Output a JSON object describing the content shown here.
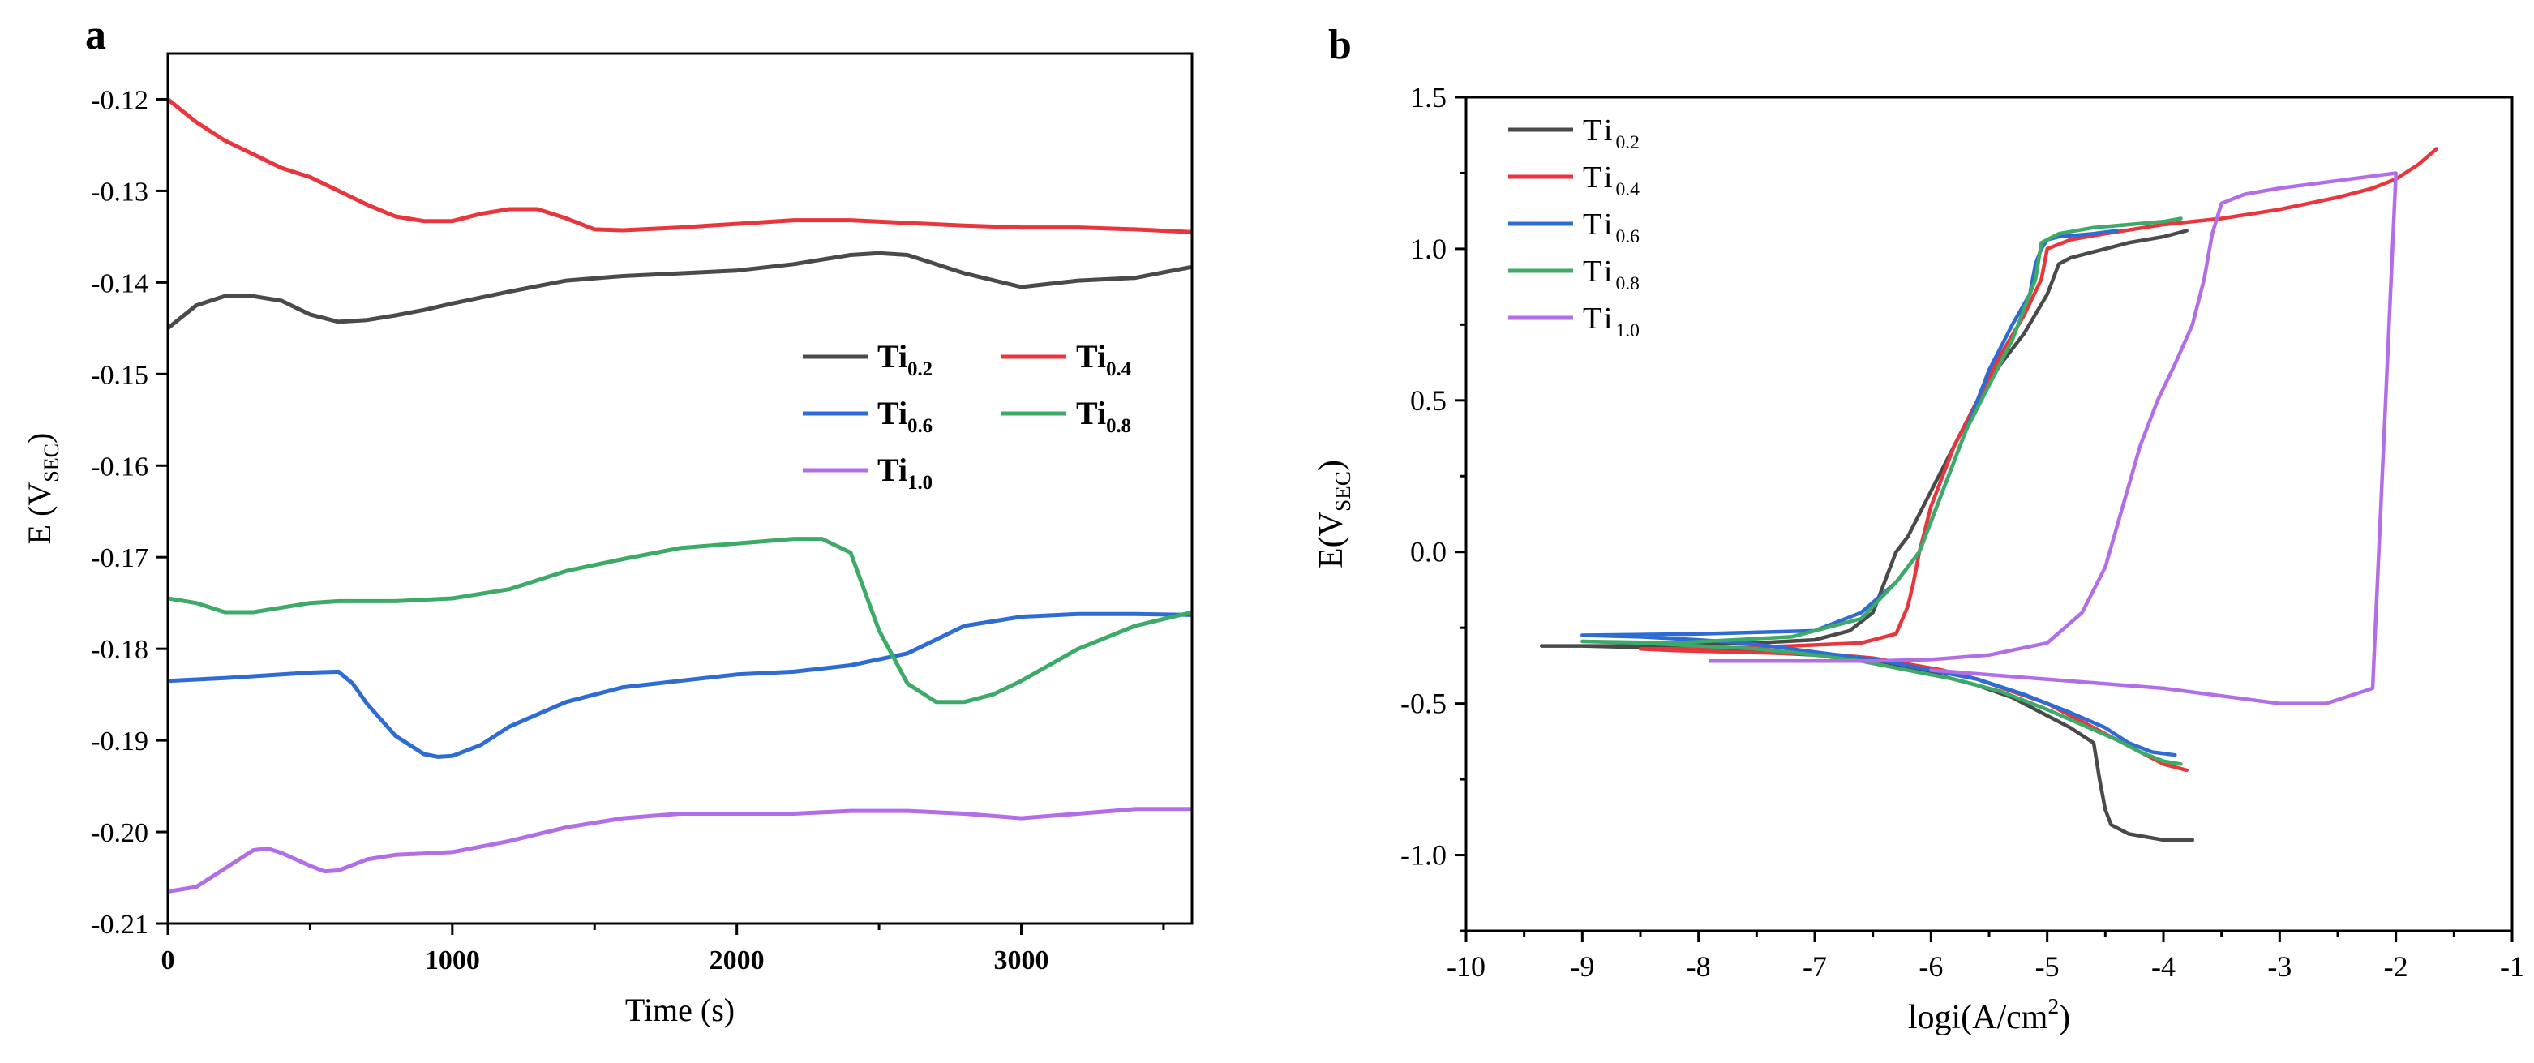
{
  "chart_data": [
    {
      "panel_label": "a",
      "type": "line",
      "xlabel": "Time (s)",
      "ylabel": "E (V",
      "ylabel_sub": "SEC",
      "ylabel_end": ")",
      "xlim": [
        0,
        3600
      ],
      "ylim": [
        -0.21,
        -0.115
      ],
      "xticks": [
        0,
        1000,
        2000,
        3000
      ],
      "xtick_labels": [
        "0",
        "1000",
        "2000",
        "3000"
      ],
      "yticks": [
        -0.21,
        -0.2,
        -0.19,
        -0.18,
        -0.17,
        -0.16,
        -0.15,
        -0.14,
        -0.13,
        -0.12
      ],
      "ytick_labels": [
        "-0.21",
        "-0.20",
        "-0.19",
        "-0.18",
        "-0.17",
        "-0.16",
        "-0.15",
        "-0.14",
        "-0.13",
        "-0.12"
      ],
      "legend_position": "middle-right",
      "grid": false,
      "series": [
        {
          "name_base": "Ti",
          "name_sub": "0.2",
          "color": "#4a4a4a",
          "x": [
            0,
            100,
            200,
            300,
            400,
            500,
            600,
            700,
            800,
            900,
            1000,
            1200,
            1400,
            1600,
            1800,
            2000,
            2200,
            2400,
            2500,
            2600,
            2800,
            3000,
            3200,
            3400,
            3600
          ],
          "y": [
            -0.145,
            -0.1425,
            -0.1415,
            -0.1415,
            -0.142,
            -0.1435,
            -0.1443,
            -0.1441,
            -0.1436,
            -0.143,
            -0.1423,
            -0.141,
            -0.1398,
            -0.1393,
            -0.139,
            -0.1387,
            -0.138,
            -0.137,
            -0.1368,
            -0.137,
            -0.139,
            -0.1405,
            -0.1398,
            -0.1395,
            -0.1383
          ]
        },
        {
          "name_base": "Ti",
          "name_sub": "0.4",
          "color": "#e8363c",
          "x": [
            0,
            100,
            200,
            300,
            400,
            500,
            600,
            700,
            800,
            900,
            1000,
            1100,
            1200,
            1300,
            1400,
            1500,
            1600,
            1800,
            2000,
            2200,
            2400,
            2600,
            2800,
            3000,
            3200,
            3400,
            3600
          ],
          "y": [
            -0.12,
            -0.1225,
            -0.1245,
            -0.126,
            -0.1275,
            -0.1285,
            -0.13,
            -0.1315,
            -0.1328,
            -0.1333,
            -0.1333,
            -0.1325,
            -0.132,
            -0.132,
            -0.133,
            -0.1342,
            -0.1343,
            -0.134,
            -0.1336,
            -0.1332,
            -0.1332,
            -0.1335,
            -0.1338,
            -0.134,
            -0.134,
            -0.1342,
            -0.1345
          ]
        },
        {
          "name_base": "Ti",
          "name_sub": "0.6",
          "color": "#2f6bd4",
          "x": [
            0,
            200,
            400,
            500,
            600,
            650,
            700,
            800,
            900,
            950,
            1000,
            1100,
            1200,
            1400,
            1600,
            1800,
            2000,
            2200,
            2400,
            2600,
            2800,
            3000,
            3200,
            3400,
            3600
          ],
          "y": [
            -0.1835,
            -0.1832,
            -0.1828,
            -0.1826,
            -0.1825,
            -0.1838,
            -0.186,
            -0.1895,
            -0.1915,
            -0.1918,
            -0.1917,
            -0.1905,
            -0.1885,
            -0.1858,
            -0.1842,
            -0.1835,
            -0.1828,
            -0.1825,
            -0.1818,
            -0.1805,
            -0.1775,
            -0.1765,
            -0.1762,
            -0.1762,
            -0.1763
          ]
        },
        {
          "name_base": "Ti",
          "name_sub": "0.8",
          "color": "#3daa68",
          "x": [
            0,
            100,
            200,
            300,
            400,
            500,
            600,
            800,
            1000,
            1200,
            1400,
            1600,
            1800,
            2000,
            2200,
            2300,
            2400,
            2500,
            2600,
            2700,
            2800,
            2900,
            3000,
            3200,
            3400,
            3600
          ],
          "y": [
            -0.1745,
            -0.175,
            -0.176,
            -0.176,
            -0.1755,
            -0.175,
            -0.1748,
            -0.1748,
            -0.1745,
            -0.1735,
            -0.1715,
            -0.1702,
            -0.169,
            -0.1685,
            -0.168,
            -0.168,
            -0.1695,
            -0.178,
            -0.1838,
            -0.1858,
            -0.1858,
            -0.185,
            -0.1835,
            -0.18,
            -0.1775,
            -0.176
          ]
        },
        {
          "name_base": "Ti",
          "name_sub": "1.0",
          "color": "#b26ee6",
          "x": [
            0,
            100,
            200,
            300,
            350,
            400,
            500,
            550,
            600,
            700,
            800,
            1000,
            1200,
            1400,
            1600,
            1800,
            2000,
            2200,
            2400,
            2600,
            2800,
            3000,
            3200,
            3400,
            3600
          ],
          "y": [
            -0.2065,
            -0.206,
            -0.204,
            -0.202,
            -0.2018,
            -0.2023,
            -0.2037,
            -0.2043,
            -0.2042,
            -0.203,
            -0.2025,
            -0.2022,
            -0.201,
            -0.1995,
            -0.1985,
            -0.198,
            -0.198,
            -0.198,
            -0.1977,
            -0.1977,
            -0.198,
            -0.1985,
            -0.198,
            -0.1975,
            -0.1975
          ]
        }
      ]
    },
    {
      "panel_label": "b",
      "type": "line",
      "xlabel": "logi(A/cm",
      "xlabel_sup": "2",
      "xlabel_end": ")",
      "ylabel": "E(V",
      "ylabel_sub": "SEC",
      "ylabel_end": ")",
      "xlim": [
        -10,
        -1
      ],
      "ylim": [
        -1.25,
        1.5
      ],
      "xticks": [
        -10,
        -9,
        -8,
        -7,
        -6,
        -5,
        -4,
        -3,
        -2,
        -1
      ],
      "xtick_labels": [
        "-10",
        "-9",
        "-8",
        "-7",
        "-6",
        "-5",
        "-4",
        "-3",
        "-2",
        "-1"
      ],
      "yticks": [
        -1.0,
        -0.5,
        0.0,
        0.5,
        1.0,
        1.5
      ],
      "ytick_labels": [
        "-1.0",
        "-0.5",
        "0.0",
        "0.5",
        "1.0",
        "1.5"
      ],
      "legend_position": "top-left",
      "grid": false,
      "series": [
        {
          "name_base": "Ti",
          "name_sub": "0.2",
          "color": "#4a4a4a",
          "x": [
            -3.75,
            -4.0,
            -4.3,
            -4.45,
            -4.5,
            -4.55,
            -4.6,
            -4.8,
            -5.0,
            -5.3,
            -5.6,
            -5.9,
            -6.2,
            -6.5,
            -6.7,
            -7.0,
            -7.5,
            -8.0,
            -8.5,
            -9.0,
            -9.35,
            -8.5,
            -7.5,
            -7.0,
            -6.7,
            -6.5,
            -6.4,
            -6.3,
            -6.2,
            -6.0,
            -5.8,
            -5.6,
            -5.4,
            -5.2,
            -5.0,
            -4.9,
            -4.8,
            -4.6,
            -4.5,
            -4.3,
            -4.0,
            -3.8
          ],
          "y": [
            -0.95,
            -0.95,
            -0.93,
            -0.9,
            -0.85,
            -0.75,
            -0.63,
            -0.58,
            -0.54,
            -0.48,
            -0.44,
            -0.41,
            -0.38,
            -0.36,
            -0.35,
            -0.34,
            -0.33,
            -0.32,
            -0.315,
            -0.31,
            -0.31,
            -0.31,
            -0.3,
            -0.29,
            -0.26,
            -0.2,
            -0.1,
            0.0,
            0.05,
            0.2,
            0.35,
            0.5,
            0.62,
            0.72,
            0.85,
            0.95,
            0.97,
            0.99,
            1.0,
            1.02,
            1.04,
            1.06
          ]
        },
        {
          "name_base": "Ti",
          "name_sub": "0.4",
          "color": "#e8363c",
          "x": [
            -3.8,
            -3.9,
            -4.0,
            -4.2,
            -4.4,
            -4.6,
            -4.8,
            -5.0,
            -5.3,
            -5.6,
            -5.9,
            -6.2,
            -6.5,
            -6.8,
            -7.2,
            -7.7,
            -8.2,
            -8.5,
            -8.0,
            -7.2,
            -6.6,
            -6.3,
            -6.2,
            -6.15,
            -6.1,
            -6.0,
            -5.8,
            -5.6,
            -5.4,
            -5.2,
            -5.05,
            -5.0,
            -4.8,
            -4.5,
            -4.0,
            -3.5,
            -3.0,
            -2.5,
            -2.2,
            -2.0,
            -1.8,
            -1.65
          ],
          "y": [
            -0.72,
            -0.71,
            -0.7,
            -0.66,
            -0.62,
            -0.58,
            -0.54,
            -0.5,
            -0.46,
            -0.42,
            -0.39,
            -0.37,
            -0.35,
            -0.34,
            -0.335,
            -0.33,
            -0.325,
            -0.32,
            -0.32,
            -0.31,
            -0.3,
            -0.27,
            -0.18,
            -0.1,
            0.0,
            0.15,
            0.35,
            0.5,
            0.65,
            0.78,
            0.9,
            1.0,
            1.03,
            1.05,
            1.08,
            1.1,
            1.13,
            1.17,
            1.2,
            1.23,
            1.28,
            1.33
          ]
        },
        {
          "name_base": "Ti",
          "name_sub": "0.6",
          "color": "#2f6bd4",
          "x": [
            -3.9,
            -4.1,
            -4.3,
            -4.5,
            -4.8,
            -5.2,
            -5.6,
            -6.0,
            -6.4,
            -6.8,
            -7.2,
            -7.6,
            -8.0,
            -8.5,
            -9.0,
            -8.0,
            -7.0,
            -6.6,
            -6.3,
            -6.1,
            -5.9,
            -5.7,
            -5.5,
            -5.3,
            -5.15,
            -5.1,
            -5.05,
            -5.0,
            -4.9,
            -4.6,
            -4.4
          ],
          "y": [
            -0.67,
            -0.66,
            -0.63,
            -0.58,
            -0.53,
            -0.47,
            -0.42,
            -0.39,
            -0.36,
            -0.34,
            -0.32,
            -0.3,
            -0.29,
            -0.28,
            -0.275,
            -0.27,
            -0.26,
            -0.2,
            -0.1,
            0.0,
            0.2,
            0.4,
            0.6,
            0.75,
            0.85,
            0.95,
            1.0,
            1.03,
            1.04,
            1.05,
            1.06
          ]
        },
        {
          "name_base": "Ti",
          "name_sub": "0.8",
          "color": "#3daa68",
          "x": [
            -3.85,
            -4.0,
            -4.2,
            -4.4,
            -4.7,
            -5.0,
            -5.4,
            -5.8,
            -6.2,
            -6.6,
            -7.0,
            -7.5,
            -8.0,
            -8.5,
            -9.0,
            -8.2,
            -7.2,
            -6.6,
            -6.3,
            -6.1,
            -5.9,
            -5.7,
            -5.5,
            -5.3,
            -5.2,
            -5.1,
            -5.05,
            -4.9,
            -4.6,
            -4.3,
            -4.0,
            -3.85
          ],
          "y": [
            -0.7,
            -0.69,
            -0.66,
            -0.62,
            -0.57,
            -0.52,
            -0.46,
            -0.42,
            -0.39,
            -0.36,
            -0.34,
            -0.32,
            -0.31,
            -0.3,
            -0.295,
            -0.3,
            -0.28,
            -0.22,
            -0.1,
            0.0,
            0.2,
            0.4,
            0.55,
            0.7,
            0.8,
            0.9,
            1.02,
            1.05,
            1.07,
            1.08,
            1.09,
            1.1
          ]
        },
        {
          "name_base": "Ti",
          "name_sub": "1.0",
          "color": "#b26ee6",
          "x": [
            -7.9,
            -7.5,
            -7.0,
            -6.5,
            -6.0,
            -5.5,
            -5.0,
            -4.7,
            -4.5,
            -4.35,
            -4.2,
            -4.05,
            -3.9,
            -3.75,
            -3.65,
            -3.58,
            -3.5,
            -3.3,
            -3.0,
            -2.6,
            -2.2,
            -2.0,
            -2.2,
            -2.6,
            -3.0,
            -4.0,
            -5.0,
            -6.0
          ],
          "y": [
            -0.36,
            -0.36,
            -0.36,
            -0.36,
            -0.355,
            -0.34,
            -0.3,
            -0.2,
            -0.05,
            0.15,
            0.35,
            0.5,
            0.62,
            0.75,
            0.9,
            1.05,
            1.15,
            1.18,
            1.2,
            1.22,
            1.24,
            1.25,
            -0.45,
            -0.5,
            -0.5,
            -0.45,
            -0.42,
            -0.39
          ]
        }
      ]
    }
  ]
}
